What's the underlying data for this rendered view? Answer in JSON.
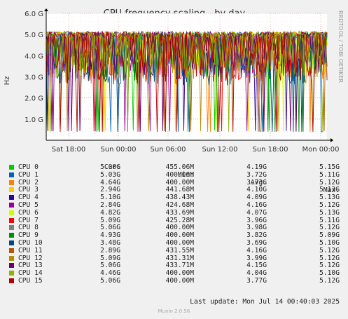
{
  "chart_data": {
    "type": "line",
    "title": "CPU frequency scaling - by day",
    "ylabel": "Hz",
    "yticks": [
      "1.0 G",
      "2.0 G",
      "3.0 G",
      "4.0 G",
      "5.0 G",
      "6.0 G"
    ],
    "ylim": [
      0,
      6000000000
    ],
    "xticks": [
      "Sat 18:00",
      "Sun 00:00",
      "Sun 06:00",
      "Sun 12:00",
      "Sun 18:00",
      "Mon 00:00"
    ],
    "side_text": "RRDTOOL / TOBI OETIKER",
    "grid": true,
    "columns": [
      "Cur:",
      "Min:",
      "Avg:",
      "Max:"
    ],
    "series": [
      {
        "name": "CPU 0",
        "color": "#00cc00",
        "cur": "5.00G",
        "min": "455.06M",
        "avg": "4.19G",
        "max": "5.15G"
      },
      {
        "name": "CPU 1",
        "color": "#0066b3",
        "cur": "5.03G",
        "min": "400.00M",
        "avg": "3.72G",
        "max": "5.11G"
      },
      {
        "name": "CPU 2",
        "color": "#ff8000",
        "cur": "4.64G",
        "min": "400.00M",
        "avg": "3.73G",
        "max": "5.12G"
      },
      {
        "name": "CPU 3",
        "color": "#ffcc00",
        "cur": "2.94G",
        "min": "441.68M",
        "avg": "4.10G",
        "max": "5.13G"
      },
      {
        "name": "CPU 4",
        "color": "#330099",
        "cur": "5.10G",
        "min": "438.43M",
        "avg": "4.09G",
        "max": "5.13G"
      },
      {
        "name": "CPU 5",
        "color": "#990099",
        "cur": "2.84G",
        "min": "424.68M",
        "avg": "4.16G",
        "max": "5.12G"
      },
      {
        "name": "CPU 6",
        "color": "#ccff00",
        "cur": "4.82G",
        "min": "433.69M",
        "avg": "4.07G",
        "max": "5.13G"
      },
      {
        "name": "CPU 7",
        "color": "#ff0000",
        "cur": "5.09G",
        "min": "425.28M",
        "avg": "3.96G",
        "max": "5.11G"
      },
      {
        "name": "CPU 8",
        "color": "#808080",
        "cur": "5.06G",
        "min": "400.00M",
        "avg": "3.98G",
        "max": "5.12G"
      },
      {
        "name": "CPU 9",
        "color": "#008f00",
        "cur": "4.93G",
        "min": "400.00M",
        "avg": "3.82G",
        "max": "5.09G"
      },
      {
        "name": "CPU 10",
        "color": "#00487d",
        "cur": "3.48G",
        "min": "400.00M",
        "avg": "3.69G",
        "max": "5.10G"
      },
      {
        "name": "CPU 11",
        "color": "#b35a00",
        "cur": "2.89G",
        "min": "431.55M",
        "avg": "4.16G",
        "max": "5.12G"
      },
      {
        "name": "CPU 12",
        "color": "#b38f00",
        "cur": "5.09G",
        "min": "431.31M",
        "avg": "3.99G",
        "max": "5.12G"
      },
      {
        "name": "CPU 13",
        "color": "#6b006b",
        "cur": "5.06G",
        "min": "433.71M",
        "avg": "4.15G",
        "max": "5.12G"
      },
      {
        "name": "CPU 14",
        "color": "#8fb300",
        "cur": "4.46G",
        "min": "400.00M",
        "avg": "4.04G",
        "max": "5.10G"
      },
      {
        "name": "CPU 15",
        "color": "#b30000",
        "cur": "5.06G",
        "min": "400.00M",
        "avg": "3.77G",
        "max": "5.12G"
      }
    ]
  },
  "footer": {
    "last_update": "Last update: Mon Jul 14 00:40:03 2025",
    "munin": "Munin 2.0.56"
  }
}
